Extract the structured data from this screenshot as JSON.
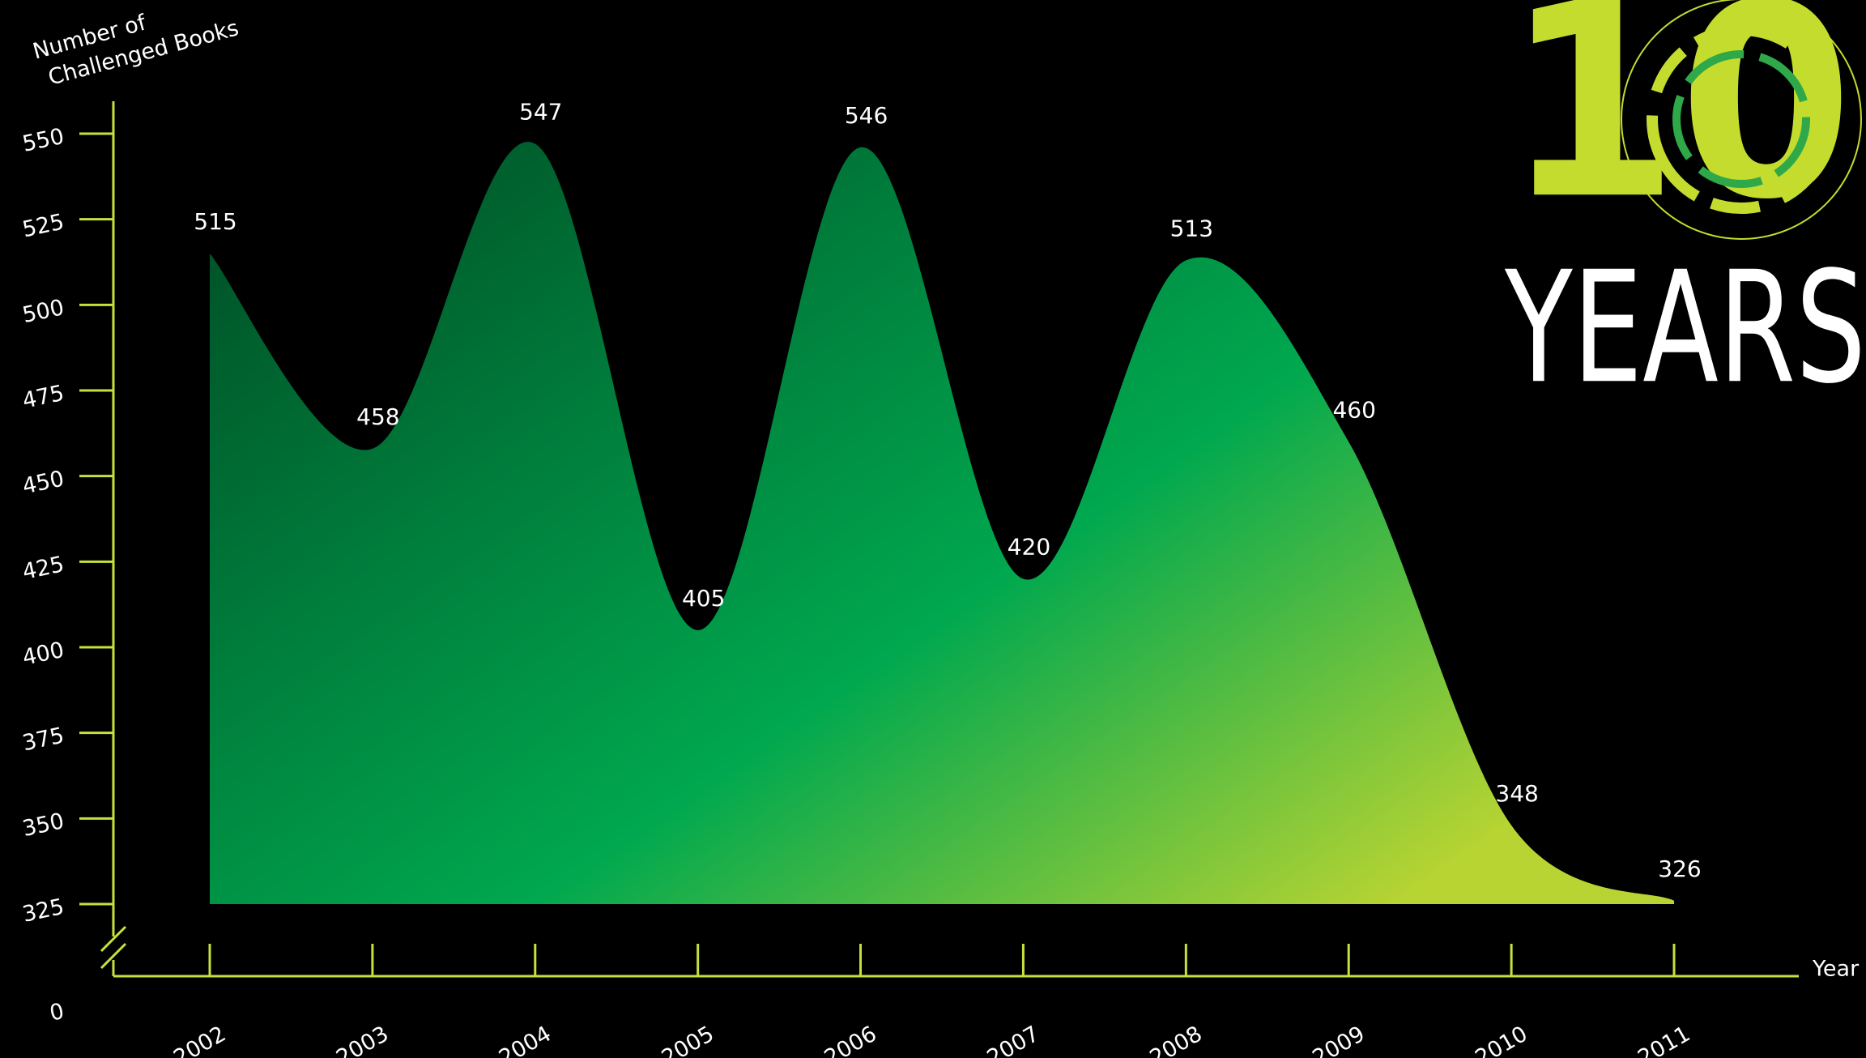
{
  "chart_data": {
    "type": "area",
    "ylabel_lines": [
      "Number of",
      "Challenged Books"
    ],
    "xlabel": "Year",
    "categories": [
      "2002",
      "2003",
      "2004",
      "2005",
      "2006",
      "2007",
      "2008",
      "2009",
      "2010",
      "2011"
    ],
    "values": [
      515,
      458,
      547,
      405,
      546,
      420,
      513,
      460,
      348,
      326
    ],
    "ylim": [
      325,
      550
    ],
    "yticks": [
      0,
      325,
      350,
      375,
      400,
      425,
      450,
      475,
      500,
      525,
      550
    ],
    "axis_break": true,
    "axis_color": "#c8e03c",
    "colors": [
      "#004a24",
      "#00a84f",
      "#b8d432"
    ],
    "badge": {
      "number": "10",
      "word": "YEARS"
    }
  }
}
